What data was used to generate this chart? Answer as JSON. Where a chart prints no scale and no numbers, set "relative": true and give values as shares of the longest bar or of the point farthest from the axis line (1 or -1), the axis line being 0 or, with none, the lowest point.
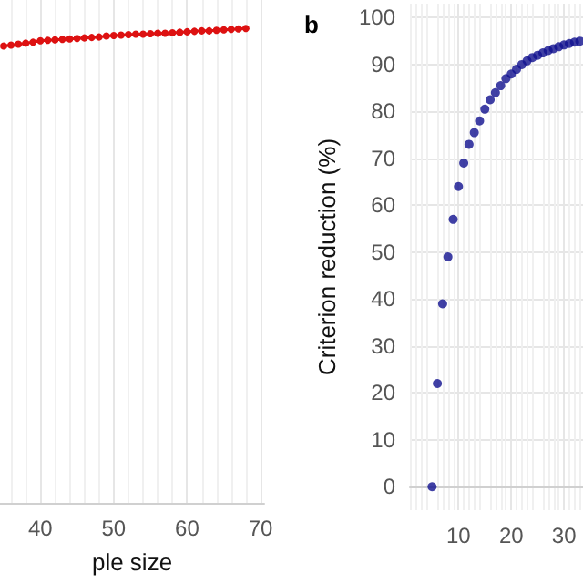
{
  "chart_data": [
    {
      "type": "line",
      "xlabel": "ple size",
      "relative": true,
      "grid": true,
      "marker": "circle",
      "tick_labels": "x",
      "xlim": [
        34.5,
        70.5
      ],
      "xticks": [
        40,
        50,
        60,
        70
      ],
      "series": [
        {
          "color": "#dd1111",
          "x": [
            35,
            36,
            37,
            38,
            39,
            40,
            41,
            42,
            43,
            44,
            45,
            46,
            47,
            48,
            49,
            50,
            51,
            52,
            53,
            54,
            55,
            56,
            57,
            58,
            59,
            60,
            61,
            62,
            63,
            64,
            65,
            66,
            67,
            68
          ],
          "values": [
            0.963,
            0.965,
            0.967,
            0.969,
            0.971,
            0.974,
            0.975,
            0.976,
            0.977,
            0.978,
            0.979,
            0.98,
            0.981,
            0.982,
            0.984,
            0.985,
            0.986,
            0.987,
            0.988,
            0.988,
            0.989,
            0.99,
            0.99,
            0.991,
            0.992,
            0.993,
            0.994,
            0.995,
            0.995,
            0.996,
            0.997,
            0.998,
            0.999,
            1.0
          ]
        }
      ]
    },
    {
      "type": "scatter",
      "title": "b",
      "ylabel": "Criterion reduction (%)",
      "grid": true,
      "marker": "circle",
      "xlim": [
        0.8,
        33.6
      ],
      "xticks": [
        10,
        20,
        30
      ],
      "ylim": [
        -5,
        103
      ],
      "yticks": [
        0,
        10,
        20,
        30,
        40,
        50,
        60,
        70,
        80,
        90,
        100
      ],
      "series": [
        {
          "color": "#10108f",
          "x": [
            5,
            6,
            7,
            8,
            9,
            10,
            11,
            12,
            13,
            14,
            15,
            16,
            17,
            18,
            19,
            20,
            21,
            22,
            23,
            24,
            25,
            26,
            27,
            28,
            29,
            30,
            31,
            32,
            33
          ],
          "values": [
            0,
            22,
            39,
            49,
            57,
            64,
            69,
            73,
            75.5,
            78,
            80.5,
            82.5,
            84,
            85.5,
            87,
            88,
            89,
            90,
            90.8,
            91.5,
            92,
            92.5,
            93,
            93.4,
            93.8,
            94.2,
            94.5,
            94.8,
            95
          ]
        }
      ]
    }
  ]
}
